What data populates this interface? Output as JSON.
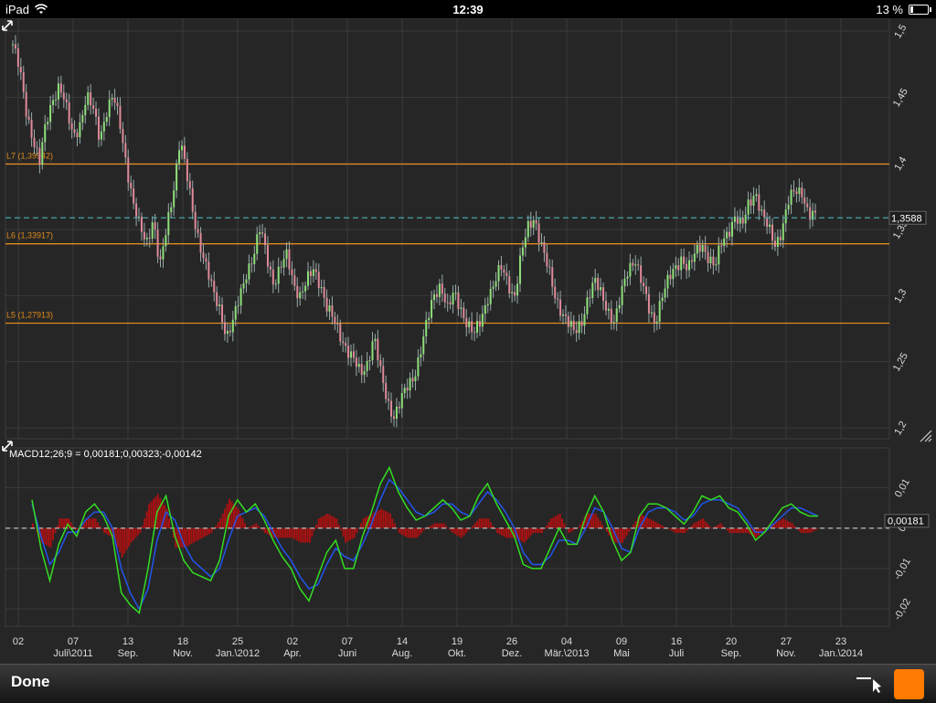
{
  "status_bar": {
    "carrier": "iPad",
    "time": "12:39",
    "battery": "13 %"
  },
  "bottom_bar": {
    "done_label": "Done"
  },
  "colors": {
    "accent": "#ff7a00",
    "macd_line": "#33dd22",
    "signal_line": "#2255ee",
    "histogram": "#aa1111",
    "level_line": "#e08a1e",
    "current_price_line": "#4aa3a8"
  },
  "chart_data": [
    {
      "type": "candlestick",
      "instrument_price_label": "1,3588",
      "current_price": 1.3588,
      "ylim": [
        1.2,
        1.5
      ],
      "y_ticks": [
        "1,5",
        "1,45",
        "1,4",
        "1,35",
        "1,3",
        "1,25",
        "1,2"
      ],
      "y_tick_values": [
        1.5,
        1.45,
        1.4,
        1.35,
        1.3,
        1.25,
        1.2
      ],
      "levels": [
        {
          "label": "L7 (1,39942)",
          "value": 1.39942
        },
        {
          "label": "L6 (1,33917)",
          "value": 1.33917
        },
        {
          "label": "L5 (1,27913)",
          "value": 1.27913
        }
      ],
      "close_series": [
        1.49,
        1.47,
        1.44,
        1.42,
        1.4,
        1.43,
        1.45,
        1.46,
        1.44,
        1.42,
        1.43,
        1.45,
        1.44,
        1.42,
        1.44,
        1.45,
        1.43,
        1.4,
        1.37,
        1.35,
        1.34,
        1.36,
        1.32,
        1.35,
        1.38,
        1.42,
        1.39,
        1.36,
        1.34,
        1.32,
        1.3,
        1.29,
        1.27,
        1.28,
        1.3,
        1.32,
        1.33,
        1.35,
        1.33,
        1.31,
        1.32,
        1.33,
        1.31,
        1.3,
        1.31,
        1.32,
        1.31,
        1.29,
        1.28,
        1.27,
        1.26,
        1.25,
        1.24,
        1.25,
        1.27,
        1.24,
        1.22,
        1.21,
        1.22,
        1.23,
        1.24,
        1.26,
        1.28,
        1.3,
        1.31,
        1.29,
        1.3,
        1.29,
        1.28,
        1.27,
        1.28,
        1.3,
        1.31,
        1.32,
        1.31,
        1.3,
        1.33,
        1.35,
        1.36,
        1.34,
        1.32,
        1.3,
        1.29,
        1.28,
        1.27,
        1.28,
        1.3,
        1.31,
        1.3,
        1.29,
        1.28,
        1.3,
        1.32,
        1.33,
        1.31,
        1.29,
        1.28,
        1.3,
        1.31,
        1.32,
        1.33,
        1.32,
        1.33,
        1.34,
        1.33,
        1.32,
        1.34,
        1.35,
        1.36,
        1.35,
        1.37,
        1.38,
        1.36,
        1.35,
        1.34,
        1.35,
        1.37,
        1.38,
        1.38,
        1.36,
        1.3588
      ],
      "x_ticks_day": [
        "02",
        "07",
        "13",
        "18",
        "25",
        "02",
        "07",
        "14",
        "19",
        "26",
        "04",
        "09",
        "16",
        "20",
        "27",
        "23"
      ],
      "x_ticks_month": [
        "",
        "Juli\\2011",
        "Sep.",
        "Nov.",
        "Jan.\\2012",
        "Apr.",
        "Juni",
        "Aug.",
        "Okt.",
        "Dez.",
        "Mär.\\2013",
        "Mai",
        "Juli",
        "Sep.",
        "Nov.",
        "Jan.\\2014"
      ]
    },
    {
      "type": "line",
      "title": "MACD12;26;9 = 0,00181;0,00323;-0,00142",
      "current_label": "0,00181",
      "current_value": 0.00181,
      "ylim": [
        -0.022,
        0.016
      ],
      "y_ticks": [
        "0,01",
        "0",
        "-0,01",
        "-0,02"
      ],
      "y_tick_values": [
        0.01,
        0,
        -0.01,
        -0.02
      ],
      "macd": [
        0.007,
        -0.005,
        -0.013,
        -0.004,
        0.001,
        -0.002,
        0.004,
        0.006,
        0.003,
        -0.002,
        -0.016,
        -0.019,
        -0.021,
        -0.01,
        0.004,
        0.008,
        -0.002,
        -0.008,
        -0.011,
        -0.012,
        -0.013,
        -0.008,
        0.003,
        0.007,
        0.004,
        0.006,
        0.002,
        -0.003,
        -0.007,
        -0.01,
        -0.015,
        -0.018,
        -0.012,
        -0.006,
        -0.003,
        -0.01,
        -0.01,
        -0.002,
        0.004,
        0.011,
        0.015,
        0.009,
        0.005,
        0.002,
        0.003,
        0.005,
        0.007,
        0.005,
        0.002,
        0.003,
        0.008,
        0.011,
        0.006,
        0.002,
        -0.002,
        -0.009,
        -0.01,
        -0.01,
        -0.005,
        0.0,
        -0.004,
        -0.004,
        0.003,
        0.008,
        0.004,
        -0.003,
        -0.008,
        -0.006,
        0.003,
        0.006,
        0.006,
        0.005,
        0.003,
        0.001,
        0.004,
        0.008,
        0.007,
        0.008,
        0.005,
        0.004,
        0.001,
        -0.003,
        -0.001,
        0.002,
        0.005,
        0.006,
        0.004,
        0.003,
        0.003
      ],
      "signal": [
        0.006,
        -0.002,
        -0.009,
        -0.006,
        -0.001,
        -0.001,
        0.002,
        0.004,
        0.004,
        0.0,
        -0.01,
        -0.016,
        -0.02,
        -0.015,
        -0.003,
        0.004,
        0.002,
        -0.004,
        -0.008,
        -0.01,
        -0.012,
        -0.01,
        -0.003,
        0.003,
        0.004,
        0.005,
        0.003,
        -0.001,
        -0.005,
        -0.008,
        -0.012,
        -0.015,
        -0.014,
        -0.009,
        -0.005,
        -0.007,
        -0.008,
        -0.004,
        0.001,
        0.007,
        0.012,
        0.01,
        0.007,
        0.004,
        0.003,
        0.004,
        0.006,
        0.006,
        0.004,
        0.003,
        0.006,
        0.009,
        0.007,
        0.004,
        0.0,
        -0.006,
        -0.009,
        -0.009,
        -0.007,
        -0.003,
        -0.003,
        -0.004,
        0.0,
        0.005,
        0.004,
        0.0,
        -0.005,
        -0.006,
        0.0,
        0.004,
        0.005,
        0.005,
        0.004,
        0.002,
        0.003,
        0.006,
        0.007,
        0.007,
        0.006,
        0.005,
        0.002,
        -0.001,
        -0.001,
        0.001,
        0.003,
        0.005,
        0.005,
        0.004,
        0.003
      ]
    }
  ]
}
